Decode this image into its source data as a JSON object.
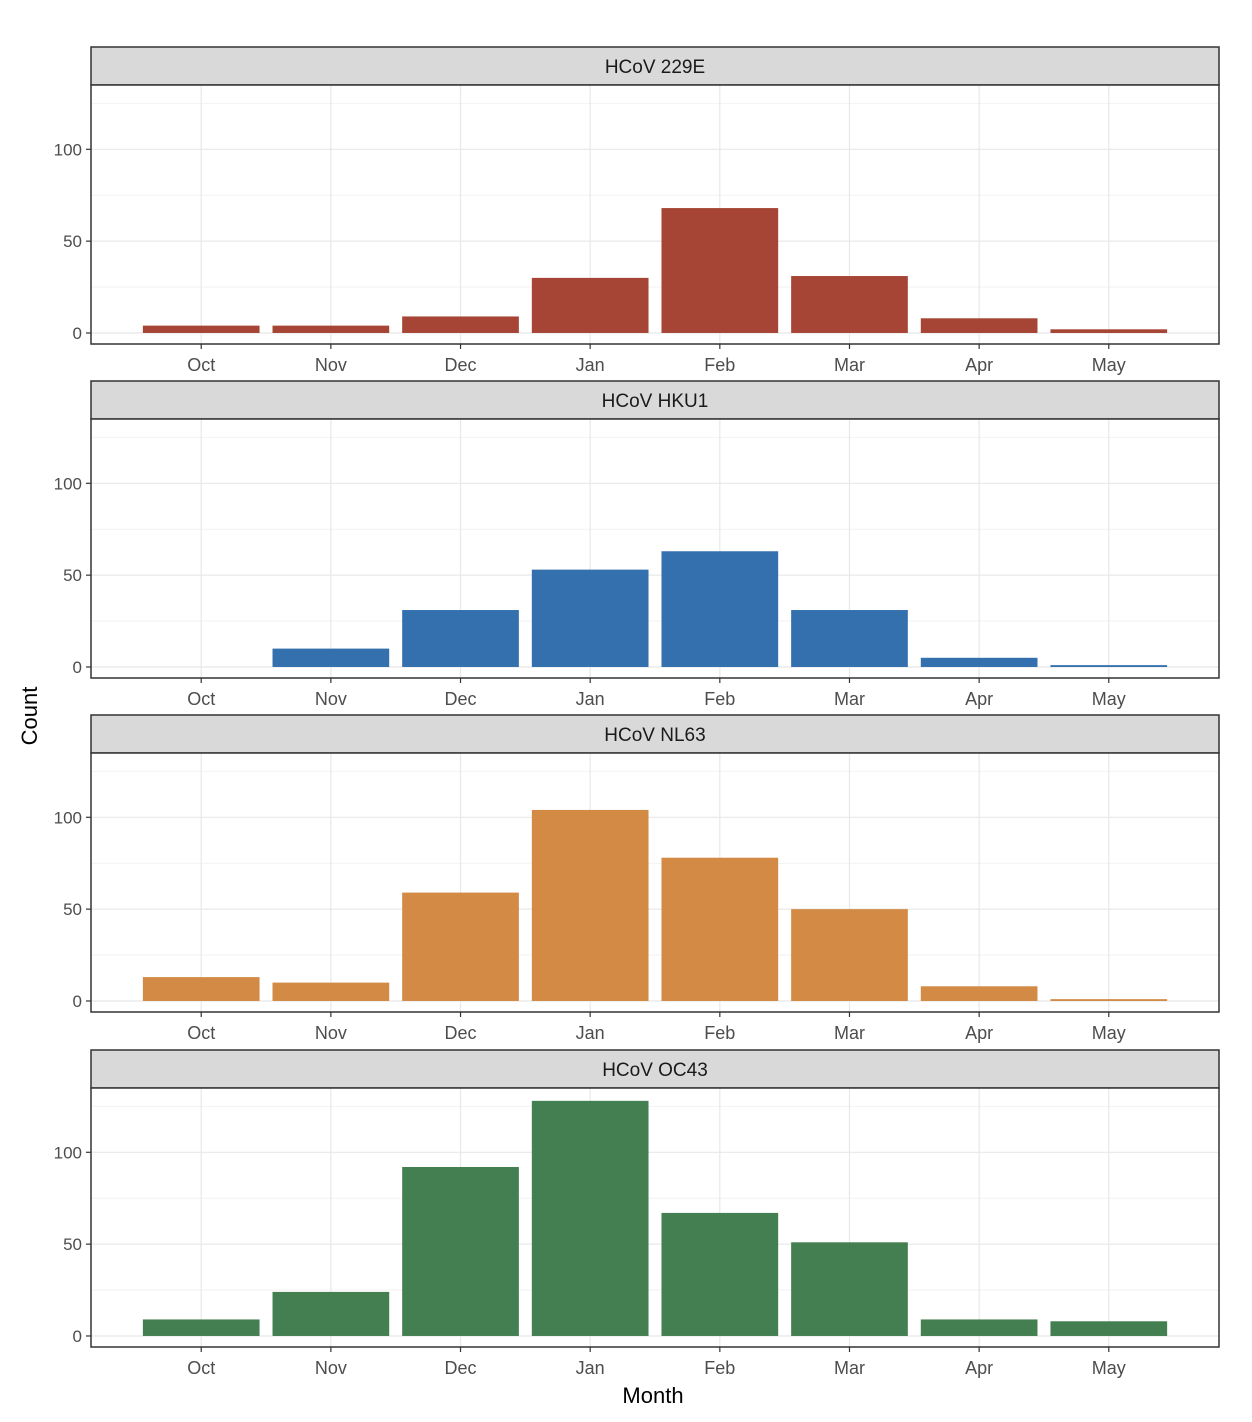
{
  "chart_data": {
    "type": "bar",
    "layout": "facet-vertical",
    "xlabel": "Month",
    "ylabel": "Count",
    "categories": [
      "Oct",
      "Nov",
      "Dec",
      "Jan",
      "Feb",
      "Mar",
      "Apr",
      "May"
    ],
    "y_ticks": [
      0,
      50,
      100
    ],
    "ylim": [
      -6,
      135
    ],
    "grid": true,
    "legend": "none",
    "panels": [
      {
        "title": "HCoV 229E",
        "color": "#A64535",
        "values": [
          4,
          4,
          9,
          30,
          68,
          31,
          8,
          2
        ]
      },
      {
        "title": "HCoV HKU1",
        "color": "#3370AD",
        "values": [
          0,
          10,
          31,
          53,
          63,
          31,
          5,
          1
        ]
      },
      {
        "title": "HCoV NL63",
        "color": "#D28A44",
        "values": [
          13,
          10,
          59,
          104,
          78,
          50,
          8,
          1
        ]
      },
      {
        "title": "HCoV OC43",
        "color": "#447F51",
        "values": [
          9,
          24,
          92,
          128,
          67,
          51,
          9,
          8
        ]
      }
    ]
  }
}
